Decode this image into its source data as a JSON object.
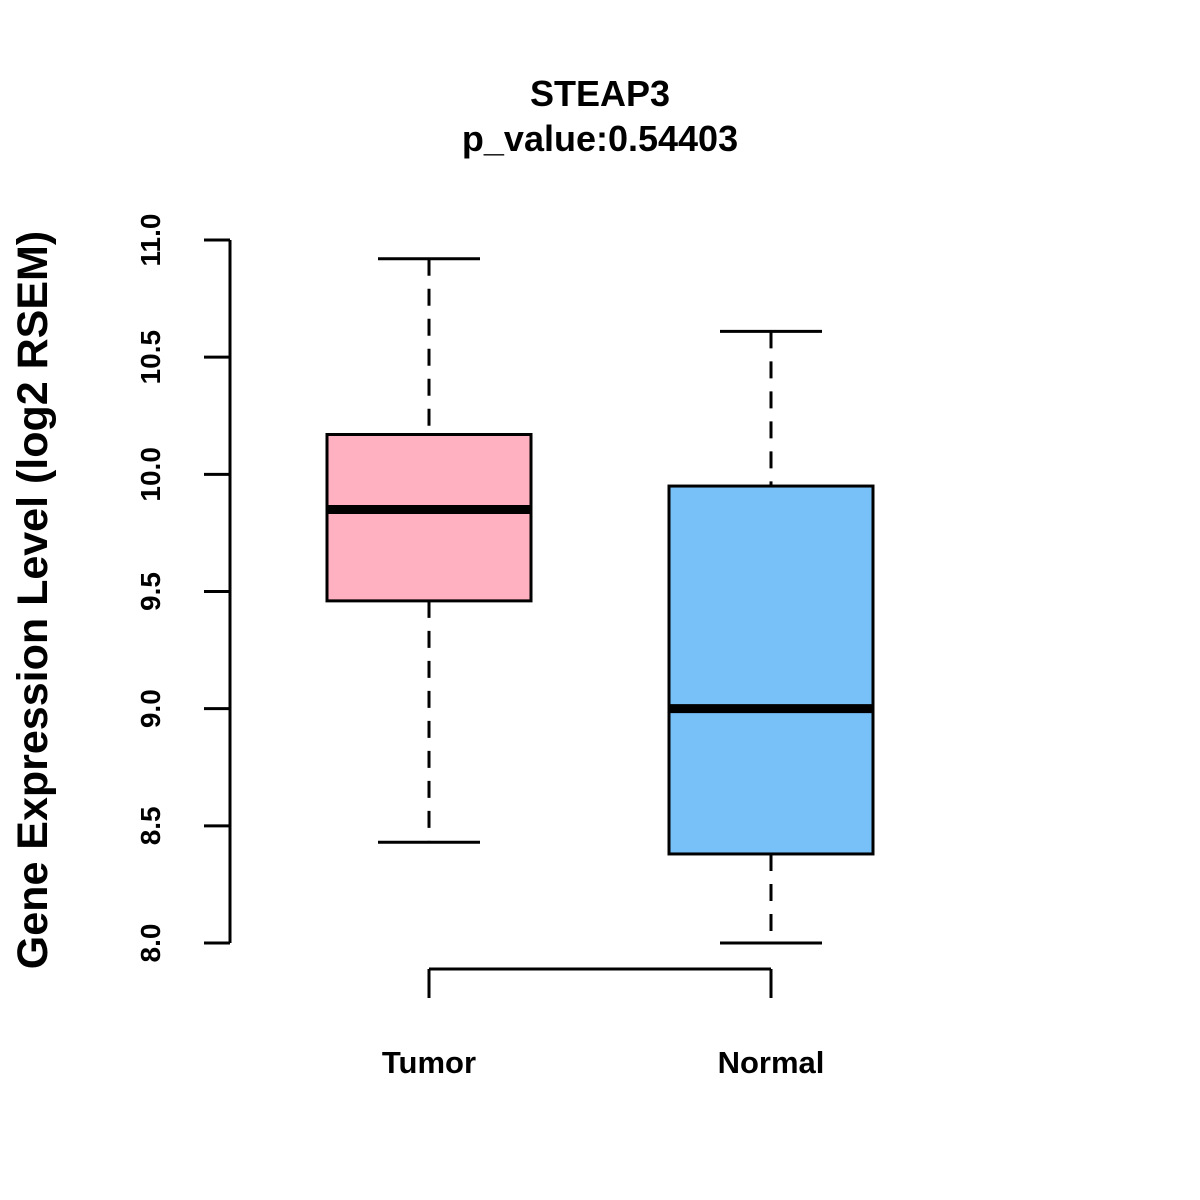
{
  "chart_data": {
    "type": "boxplot",
    "title": "STEAP3",
    "subtitle": "p_value:0.54403",
    "xlabel": "",
    "ylabel": "Gene Expression Level (log2 RSEM)",
    "ylim": [
      8.0,
      11.0
    ],
    "yticks": [
      "8.0",
      "8.5",
      "9.0",
      "9.5",
      "10.0",
      "10.5",
      "11.0"
    ],
    "categories": [
      "Tumor",
      "Normal"
    ],
    "colors": [
      "#FFB1C1",
      "#78C1F8"
    ],
    "series": [
      {
        "name": "Tumor",
        "min": 8.43,
        "q1": 9.46,
        "median": 9.85,
        "q3": 10.17,
        "max": 10.92
      },
      {
        "name": "Normal",
        "min": 8.0,
        "q1": 8.38,
        "median": 9.0,
        "q3": 9.95,
        "max": 10.61
      }
    ],
    "grid": false
  }
}
